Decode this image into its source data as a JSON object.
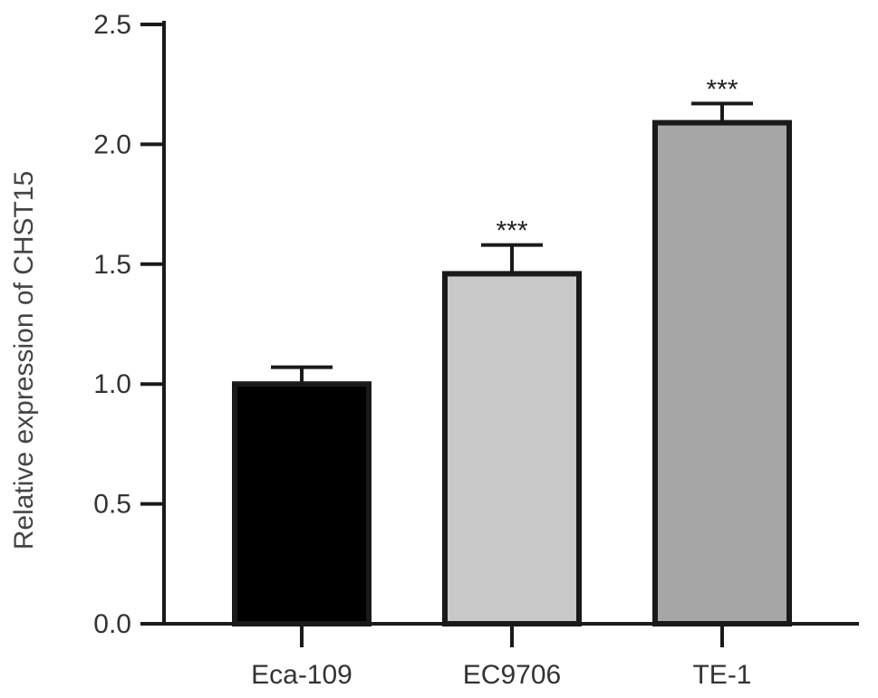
{
  "chart_data": {
    "type": "bar",
    "title": "",
    "xlabel": "",
    "ylabel": "Relative expression of CHST15",
    "categories": [
      "Eca-109",
      "EC9706",
      "TE-1"
    ],
    "values": [
      1.0,
      1.46,
      2.09
    ],
    "errors": [
      0.07,
      0.12,
      0.08
    ],
    "significance": [
      "",
      "***",
      "***"
    ],
    "bar_colors": [
      "#000000",
      "#c8c8c8",
      "#a6a6a6"
    ],
    "edge_color": "#1a1a1a",
    "ylim": [
      0,
      2.5
    ],
    "yticks": [
      "0.0",
      "0.5",
      "1.0",
      "1.5",
      "2.0",
      "2.5"
    ],
    "grid": false,
    "legend": "none"
  }
}
